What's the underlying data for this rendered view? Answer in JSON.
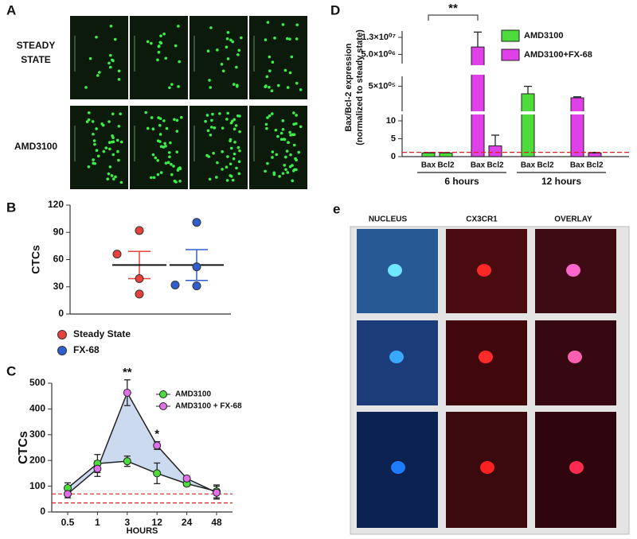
{
  "panel_labels": [
    "A",
    "B",
    "C",
    "D",
    "e"
  ],
  "panel_a": {
    "row_labels": [
      [
        "STEADY",
        "STATE"
      ],
      [
        "AMD3100"
      ]
    ]
  },
  "panel_e": {
    "column_labels": [
      "NUCLEUS",
      "CX3CR1",
      "OVERLAY"
    ]
  },
  "chart_data": [
    {
      "type": "dot_plot",
      "ylabel": "CTCs",
      "ylim": [
        0,
        120
      ],
      "yticks": [
        0,
        30,
        60,
        90,
        120
      ],
      "series": [
        {
          "name": "Steady State",
          "color": "#e8403a",
          "values": [
            92,
            66,
            39,
            22
          ],
          "mean": 54,
          "error": 15
        },
        {
          "name": "FX-68",
          "color": "#2f5fcf",
          "values": [
            101,
            52,
            32,
            31
          ],
          "mean": 54,
          "error": 17
        }
      ]
    },
    {
      "type": "line",
      "ylabel": "CTCs",
      "xlabel": "HOURS",
      "categories": [
        "0.5",
        "1",
        "3",
        "12",
        "24",
        "48"
      ],
      "ylim": [
        0,
        500
      ],
      "yticks": [
        0,
        100,
        200,
        300,
        400,
        500
      ],
      "series": [
        {
          "name": "AMD3100",
          "color": "#4ddc3c",
          "values": [
            93,
            188,
            197,
            150,
            110,
            80
          ],
          "errors": [
            20,
            35,
            20,
            40,
            10,
            25
          ]
        },
        {
          "name": "AMD3100 + FX-68",
          "color": "#e070e8",
          "values": [
            70,
            168,
            463,
            258,
            130,
            75
          ],
          "errors": [
            15,
            30,
            50,
            15,
            10,
            25
          ]
        }
      ],
      "annotations": [
        {
          "x": "3",
          "text": "**"
        },
        {
          "x": "12",
          "text": "*"
        }
      ],
      "reference_lines": [
        70,
        35
      ]
    },
    {
      "type": "bar",
      "ylabel": [
        "Bax/Bcl-2 expression",
        "(normalized to steady state)"
      ],
      "groups": [
        "6 hours",
        "12 hours"
      ],
      "categories": [
        "Bax",
        "Bcl2"
      ],
      "y_segments": [
        {
          "ylim": [
            0,
            12
          ],
          "yticks": [
            0,
            5,
            10
          ]
        },
        {
          "ylim": [
            12,
            700000
          ],
          "yticks": [
            {
              "value": 500000,
              "label": "5×10⁰⁵"
            }
          ]
        },
        {
          "ylim": [
            700000,
            16000000
          ],
          "yticks": [
            {
              "value": 5000000,
              "label": "5.0×10⁰⁶"
            },
            {
              "value": 13000000,
              "label": "1.3×10⁰⁷"
            }
          ]
        }
      ],
      "series": [
        {
          "name": "AMD3100",
          "color": "#4ddc3c",
          "values": [
            [
              1,
              1
            ],
            [
              350000,
              0
            ]
          ],
          "errors": [
            [
              0.1,
              0.1
            ],
            [
              150000,
              0
            ]
          ]
        },
        {
          "name": "AMD3100+FX-68",
          "color": "#e040e8",
          "values": [
            [
              8500000,
              3
            ],
            [
              270000,
              1
            ]
          ],
          "errors": [
            [
              7000000,
              3
            ],
            [
              20000,
              0.2
            ]
          ]
        }
      ],
      "reference_line": 1.2,
      "annotation": "**"
    }
  ]
}
